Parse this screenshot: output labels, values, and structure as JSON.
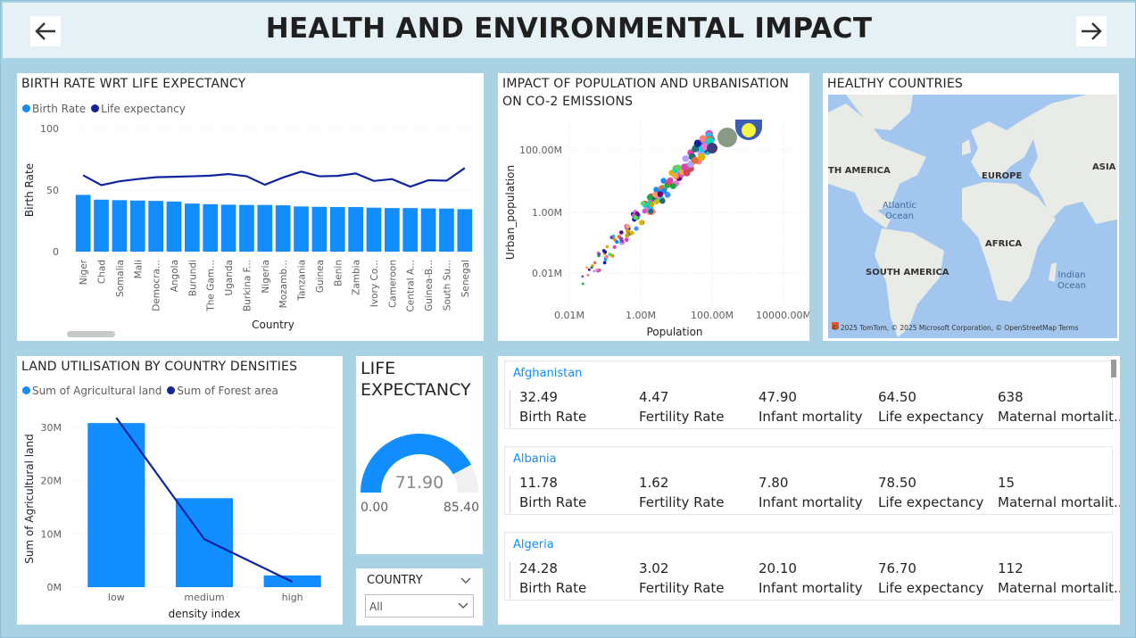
{
  "header": {
    "title": "HEALTH AND ENVIRONMENTAL IMPACT",
    "back_icon": "arrow-left-icon",
    "forward_icon": "arrow-right-icon"
  },
  "colors": {
    "primary": "#118dff",
    "secondary": "#12239e",
    "background": "#a9d3e4"
  },
  "birth_chart": {
    "title": "BIRTH RATE WRT LIFE EXPECTANCY",
    "legend": [
      "Birth Rate",
      "Life expectancy"
    ],
    "chart_data": {
      "type": "bar",
      "categories": [
        "Niger",
        "Chad",
        "Somalia",
        "Mali",
        "Democra...",
        "Angola",
        "Burundi",
        "The Gam...",
        "Uganda",
        "Burkina F...",
        "Nigeria",
        "Mozamb...",
        "Tanzania",
        "Guinea",
        "Benin",
        "Zambia",
        "Ivory Co...",
        "Cameroon",
        "Central A...",
        "Guinea-B...",
        "South Su...",
        "Senegal"
      ],
      "series": [
        {
          "name": "Birth Rate",
          "values": [
            46.1,
            42.2,
            41.8,
            41.5,
            41.2,
            40.7,
            39.0,
            38.5,
            38.1,
            37.9,
            37.9,
            37.6,
            36.7,
            36.4,
            36.2,
            36.2,
            35.7,
            35.4,
            35.4,
            35.1,
            35.0,
            34.5
          ]
        },
        {
          "name": "Life expectancy",
          "values": [
            62.0,
            54.0,
            57.1,
            58.9,
            60.4,
            60.8,
            61.2,
            61.7,
            63.0,
            61.2,
            54.3,
            60.2,
            65.0,
            61.2,
            61.5,
            63.5,
            57.4,
            58.9,
            52.8,
            58.0,
            57.6,
            67.9
          ]
        }
      ],
      "ylabel": "Birth Rate",
      "xlabel": "Country",
      "yticks": [
        "0",
        "50",
        "100"
      ],
      "ylim": [
        0,
        100
      ]
    }
  },
  "scatter_chart": {
    "title": "IMPACT OF POPULATION AND URBANISATION ON CO-2 EMISSIONS",
    "chart_data": {
      "type": "scatter",
      "xlabel": "Population",
      "ylabel": "Urban_population",
      "xticks": [
        "0.01M",
        "1.00M",
        "100.00M",
        "10000.00M"
      ],
      "yticks": [
        "0.01M",
        "1.00M",
        "100.00M"
      ],
      "scale": "log"
    }
  },
  "map": {
    "title": "HEALTHY COUNTRIES",
    "labels": [
      "TH AMERICA",
      "EUROPE",
      "ASIA",
      "Atlantic\nOcean",
      "AFRICA",
      "SOUTH AMERICA",
      "Indian\nOcean"
    ],
    "attribution": "© 2025 TomTom, © 2025 Microsoft Corporation, © OpenStreetMap  Terms"
  },
  "land_chart": {
    "title": "LAND UTILISATION BY COUNTRY DENSITIES",
    "legend": [
      "Sum of Agricultural land",
      "Sum of Forest area"
    ],
    "chart_data": {
      "type": "bar",
      "categories": [
        "low",
        "medium",
        "high"
      ],
      "series": [
        {
          "name": "Sum of Agricultural land",
          "values": [
            30.8,
            16.7,
            2.2
          ]
        },
        {
          "name": "Sum of Forest area",
          "values": [
            31.8,
            9.0,
            1.0
          ]
        }
      ],
      "ylabel": "Sum of Agricultural land",
      "xlabel": "density index",
      "yticks": [
        "0M",
        "10M",
        "20M",
        "30M"
      ],
      "ylim": [
        0,
        33
      ]
    }
  },
  "gauge": {
    "title_line1": "LIFE",
    "title_line2": "EXPECTANCY",
    "value": "71.90",
    "min": "0.00",
    "max": "85.40",
    "fraction": 0.842
  },
  "slicer": {
    "title": "COUNTRY",
    "selected": "All"
  },
  "cards": [
    {
      "name": "Afghanistan",
      "metrics": [
        [
          "32.49",
          "Birth Rate"
        ],
        [
          "4.47",
          "Fertility Rate"
        ],
        [
          "47.90",
          "Infant mortality"
        ],
        [
          "64.50",
          "Life expectancy"
        ],
        [
          "638",
          "Maternal mortalit..."
        ]
      ]
    },
    {
      "name": "Albania",
      "metrics": [
        [
          "11.78",
          "Birth Rate"
        ],
        [
          "1.62",
          "Fertility Rate"
        ],
        [
          "7.80",
          "Infant mortality"
        ],
        [
          "78.50",
          "Life expectancy"
        ],
        [
          "15",
          "Maternal mortalit..."
        ]
      ]
    },
    {
      "name": "Algeria",
      "metrics": [
        [
          "24.28",
          "Birth Rate"
        ],
        [
          "3.02",
          "Fertility Rate"
        ],
        [
          "20.10",
          "Infant mortality"
        ],
        [
          "76.70",
          "Life expectancy"
        ],
        [
          "112",
          "Maternal mortalit..."
        ]
      ]
    }
  ]
}
